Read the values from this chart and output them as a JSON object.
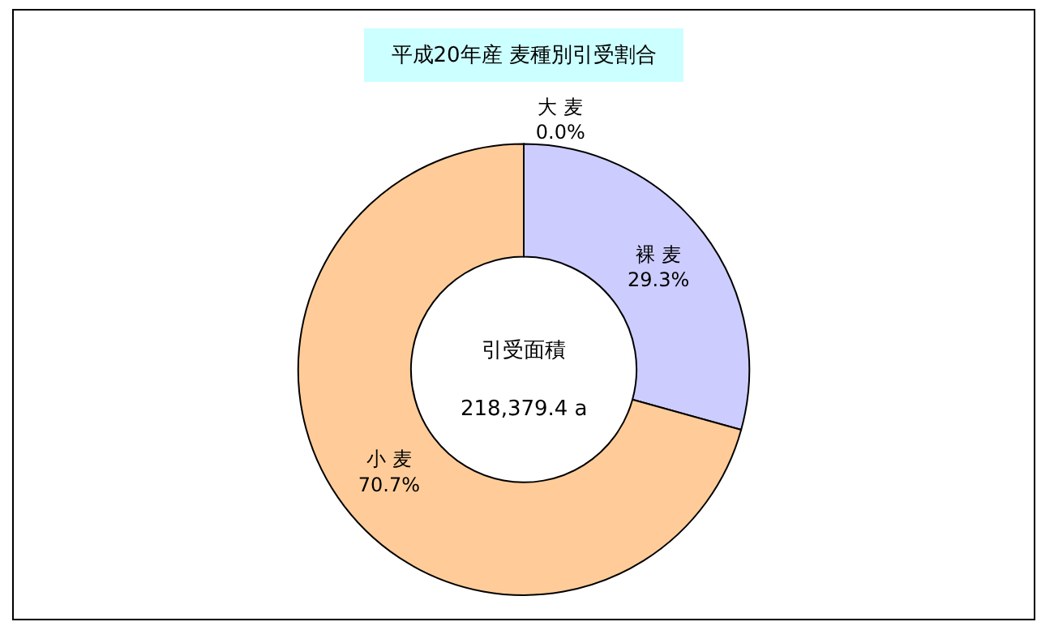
{
  "chart_data": {
    "type": "donut",
    "title": "平成20年産 麦種別引受割合",
    "categories": [
      "大 麦",
      "裸 麦",
      "小 麦"
    ],
    "values": [
      0.0,
      29.3,
      70.7
    ],
    "colors": [
      "#ffffff",
      "#ccccff",
      "#ffcc99"
    ],
    "value_labels": [
      "0.0%",
      "29.3%",
      "70.7%"
    ],
    "annotations": [
      "引受面積",
      "218,379.4 a"
    ]
  }
}
